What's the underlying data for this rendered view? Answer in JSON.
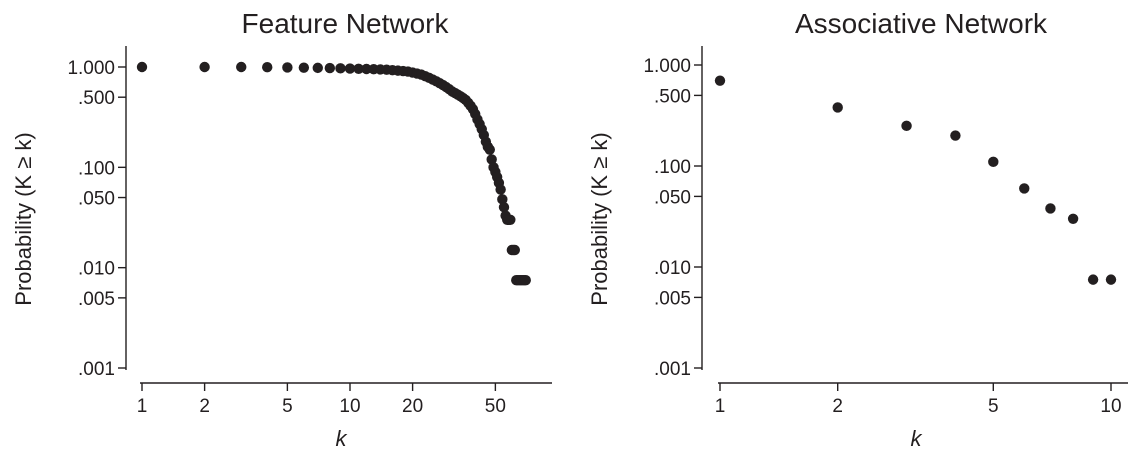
{
  "chart_data": [
    {
      "type": "scatter",
      "title": "Feature Network",
      "xlabel": "k",
      "ylabel": "Probability (K ≥ k)",
      "xscale": "log",
      "yscale": "log",
      "xlim": [
        1,
        75
      ],
      "ylim": [
        0.001,
        1.0
      ],
      "grid": false,
      "xticks": [
        1,
        2,
        5,
        10,
        20,
        50
      ],
      "xtick_labels": [
        "1",
        "2",
        "5",
        "10",
        "20",
        "50"
      ],
      "yticks": [
        1.0,
        0.5,
        0.1,
        0.05,
        0.01,
        0.005,
        0.001
      ],
      "ytick_labels": [
        "1.000",
        ".500",
        ".100",
        ".050",
        ".010",
        ".005",
        ".001"
      ],
      "x": [
        1,
        2,
        3,
        4,
        5,
        6,
        7,
        8,
        9,
        10,
        11,
        12,
        13,
        14,
        15,
        16,
        17,
        18,
        19,
        20,
        21,
        22,
        23,
        24,
        25,
        26,
        27,
        28,
        29,
        30,
        31,
        32,
        33,
        34,
        35,
        36,
        37,
        38,
        39,
        40,
        41,
        42,
        43,
        44,
        45,
        46,
        47,
        48,
        49,
        50,
        51,
        52,
        53,
        54,
        55,
        56,
        57,
        58,
        59,
        60,
        61,
        62,
        63,
        64,
        65,
        66,
        67,
        68,
        69,
        70
      ],
      "y": [
        1.0,
        1.0,
        1.0,
        0.995,
        0.99,
        0.985,
        0.98,
        0.975,
        0.97,
        0.965,
        0.96,
        0.955,
        0.95,
        0.945,
        0.94,
        0.93,
        0.92,
        0.91,
        0.9,
        0.88,
        0.86,
        0.84,
        0.81,
        0.78,
        0.75,
        0.72,
        0.69,
        0.66,
        0.63,
        0.6,
        0.57,
        0.55,
        0.53,
        0.51,
        0.49,
        0.47,
        0.44,
        0.41,
        0.38,
        0.34,
        0.3,
        0.27,
        0.24,
        0.21,
        0.18,
        0.16,
        0.15,
        0.12,
        0.1,
        0.09,
        0.08,
        0.07,
        0.06,
        0.048,
        0.04,
        0.033,
        0.03,
        0.03,
        0.03,
        0.015,
        0.015,
        0.015,
        0.0075,
        0.0075,
        0.0075,
        0.0075,
        0.0075,
        0.0075,
        0.0075,
        0.0075
      ]
    },
    {
      "type": "scatter",
      "title": "Associative Network",
      "xlabel": "k",
      "ylabel": "Probability (K ≥ k)",
      "xscale": "log",
      "yscale": "log",
      "xlim": [
        1,
        10
      ],
      "ylim": [
        0.001,
        1.0
      ],
      "grid": false,
      "xticks": [
        1,
        2,
        5,
        10
      ],
      "xtick_labels": [
        "1",
        "2",
        "5",
        "10"
      ],
      "yticks": [
        1.0,
        0.5,
        0.1,
        0.05,
        0.01,
        0.005,
        0.001
      ],
      "ytick_labels": [
        "1.000",
        ".500",
        ".100",
        ".050",
        ".010",
        ".005",
        ".001"
      ],
      "x": [
        1,
        2,
        3,
        4,
        5,
        6,
        7,
        8,
        9,
        10
      ],
      "y": [
        0.7,
        0.38,
        0.25,
        0.2,
        0.11,
        0.06,
        0.038,
        0.03,
        0.0075,
        0.0075
      ]
    }
  ]
}
